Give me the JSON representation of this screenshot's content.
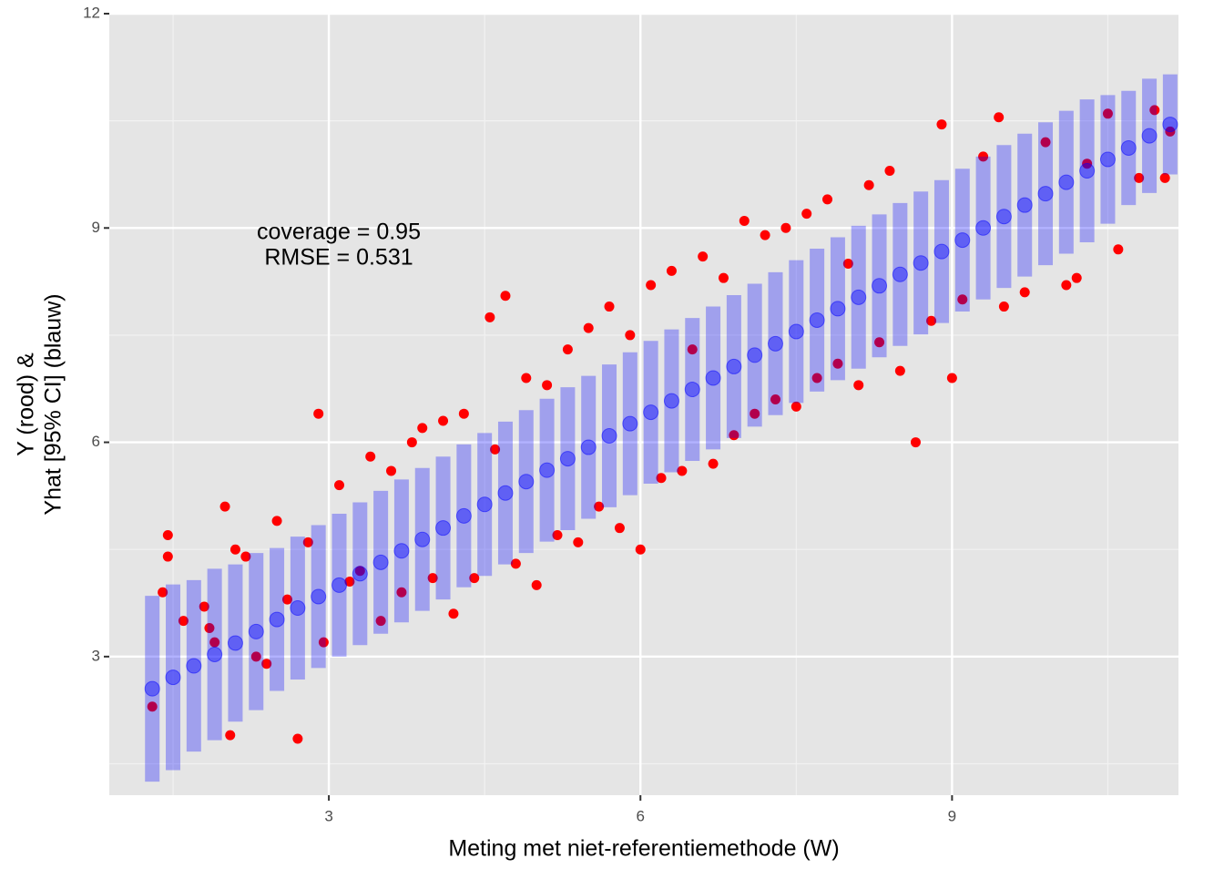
{
  "chart_data": {
    "type": "scatter",
    "x_label": "Meting met niet-referentiemethode (W)",
    "y_label": [
      "Y (rood) &",
      "Yhat [95% CI] (blauw)"
    ],
    "annotation": [
      "coverage = 0.95",
      "RMSE = 0.531"
    ],
    "xlim": [
      0.886,
      11.18
    ],
    "ylim": [
      1.06,
      12
    ],
    "xticks": [
      3,
      6,
      9
    ],
    "yticks": [
      3,
      6,
      9,
      12
    ],
    "xminor": [
      1.5,
      4.5,
      7.5,
      10.5
    ],
    "yminor": [
      1.5,
      4.5,
      7.5,
      10.5
    ],
    "grid": true,
    "series": [
      {
        "name": "Y",
        "color": "#ff0000",
        "x": [
          1.3,
          1.45,
          1.45,
          1.4,
          1.6,
          1.8,
          1.85,
          1.9,
          2.05,
          2.0,
          2.1,
          2.2,
          2.3,
          2.4,
          2.5,
          2.6,
          2.7,
          2.8,
          2.9,
          2.95,
          3.1,
          3.2,
          3.3,
          3.4,
          3.5,
          3.6,
          3.7,
          3.8,
          3.9,
          4.0,
          4.1,
          4.2,
          4.3,
          4.4,
          4.55,
          4.6,
          4.7,
          4.8,
          4.9,
          5.0,
          5.1,
          5.2,
          5.3,
          5.4,
          5.5,
          5.6,
          5.7,
          5.8,
          5.9,
          6.0,
          6.1,
          6.2,
          6.3,
          6.4,
          6.5,
          6.6,
          6.7,
          6.8,
          6.9,
          7.0,
          7.1,
          7.2,
          7.3,
          7.4,
          7.5,
          7.6,
          7.7,
          7.8,
          7.9,
          8.0,
          8.1,
          8.2,
          8.3,
          8.4,
          8.5,
          8.65,
          8.8,
          8.9,
          9.0,
          9.1,
          9.3,
          9.45,
          9.5,
          9.7,
          9.9,
          10.1,
          10.2,
          10.3,
          10.5,
          10.6,
          10.8,
          10.95,
          11.05,
          11.1
        ],
        "values": [
          2.3,
          4.7,
          4.4,
          3.9,
          3.5,
          3.7,
          3.4,
          3.2,
          1.9,
          5.1,
          4.5,
          4.4,
          3.0,
          2.9,
          4.9,
          3.8,
          1.85,
          4.6,
          6.4,
          3.2,
          5.4,
          4.05,
          4.2,
          5.8,
          3.5,
          5.6,
          3.9,
          6.0,
          6.2,
          4.1,
          6.3,
          3.6,
          6.4,
          4.1,
          7.75,
          5.9,
          8.05,
          4.3,
          6.9,
          4.0,
          6.8,
          4.7,
          7.3,
          4.6,
          7.6,
          5.1,
          7.9,
          4.8,
          7.5,
          4.5,
          8.2,
          5.5,
          8.4,
          5.6,
          7.3,
          8.6,
          5.7,
          8.3,
          6.1,
          9.1,
          6.4,
          8.9,
          6.6,
          9.0,
          6.5,
          9.2,
          6.9,
          9.4,
          7.1,
          8.5,
          6.8,
          9.6,
          7.4,
          9.8,
          7.0,
          6.0,
          7.7,
          10.45,
          6.9,
          8.0,
          10.0,
          10.55,
          7.9,
          8.1,
          10.2,
          8.2,
          8.3,
          9.9,
          10.6,
          8.7,
          9.7,
          10.65,
          9.7,
          10.35
        ]
      },
      {
        "name": "Yhat",
        "color": "#0000ff",
        "x": [
          1.3,
          1.5,
          1.7,
          1.9,
          2.1,
          2.3,
          2.5,
          2.7,
          2.9,
          3.1,
          3.3,
          3.5,
          3.7,
          3.9,
          4.1,
          4.3,
          4.5,
          4.7,
          4.9,
          5.1,
          5.3,
          5.5,
          5.7,
          5.9,
          6.1,
          6.3,
          6.5,
          6.7,
          6.9,
          7.1,
          7.3,
          7.5,
          7.7,
          7.9,
          8.1,
          8.3,
          8.5,
          8.7,
          8.9,
          9.1,
          9.3,
          9.5,
          9.7,
          9.9,
          10.1,
          10.3,
          10.5,
          10.7,
          10.9,
          11.1
        ],
        "values": [
          2.55,
          2.71,
          2.87,
          3.03,
          3.19,
          3.35,
          3.52,
          3.68,
          3.84,
          4.0,
          4.16,
          4.32,
          4.48,
          4.64,
          4.8,
          4.97,
          5.13,
          5.29,
          5.45,
          5.61,
          5.77,
          5.93,
          6.09,
          6.26,
          6.42,
          6.58,
          6.74,
          6.9,
          7.06,
          7.22,
          7.38,
          7.55,
          7.71,
          7.87,
          8.03,
          8.19,
          8.35,
          8.51,
          8.67,
          8.83,
          9.0,
          9.16,
          9.32,
          9.48,
          9.64,
          9.8,
          9.96,
          10.12,
          10.29,
          10.45
        ],
        "errors": [
          1.3,
          1.3,
          1.2,
          1.2,
          1.1,
          1.1,
          1.0,
          1.0,
          1.0,
          1.0,
          1.0,
          1.0,
          1.0,
          1.0,
          1.0,
          1.0,
          1.0,
          1.0,
          1.0,
          1.0,
          1.0,
          1.0,
          1.0,
          1.0,
          1.0,
          1.0,
          1.0,
          1.0,
          1.0,
          1.0,
          1.0,
          1.0,
          1.0,
          1.0,
          1.0,
          1.0,
          1.0,
          1.0,
          1.0,
          1.0,
          1.0,
          1.0,
          1.0,
          1.0,
          1.0,
          1.0,
          0.9,
          0.8,
          0.8,
          0.7
        ]
      }
    ]
  }
}
